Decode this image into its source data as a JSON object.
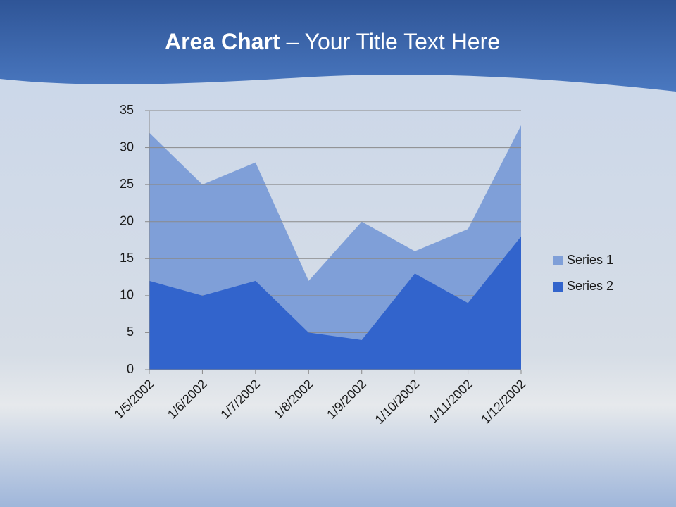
{
  "chart_data": {
    "type": "area",
    "title": [
      "Area Chart",
      " – Your Title Text Here"
    ],
    "categories": [
      "1/5/2002",
      "1/6/2002",
      "1/7/2002",
      "1/8/2002",
      "1/9/2002",
      "1/10/2002",
      "1/11/2002",
      "1/12/2002"
    ],
    "series": [
      {
        "name": "Series 1",
        "color": "#7f9fd8",
        "values": [
          32,
          25,
          28,
          12,
          20,
          16,
          19,
          33
        ]
      },
      {
        "name": "Series 2",
        "color": "#3264cc",
        "values": [
          12,
          10,
          12,
          5,
          4,
          13,
          9,
          18
        ]
      }
    ],
    "ylim": [
      0,
      35
    ],
    "yticks": [
      0,
      5,
      10,
      15,
      20,
      25,
      30,
      35
    ],
    "grid": true,
    "legend": "right"
  }
}
